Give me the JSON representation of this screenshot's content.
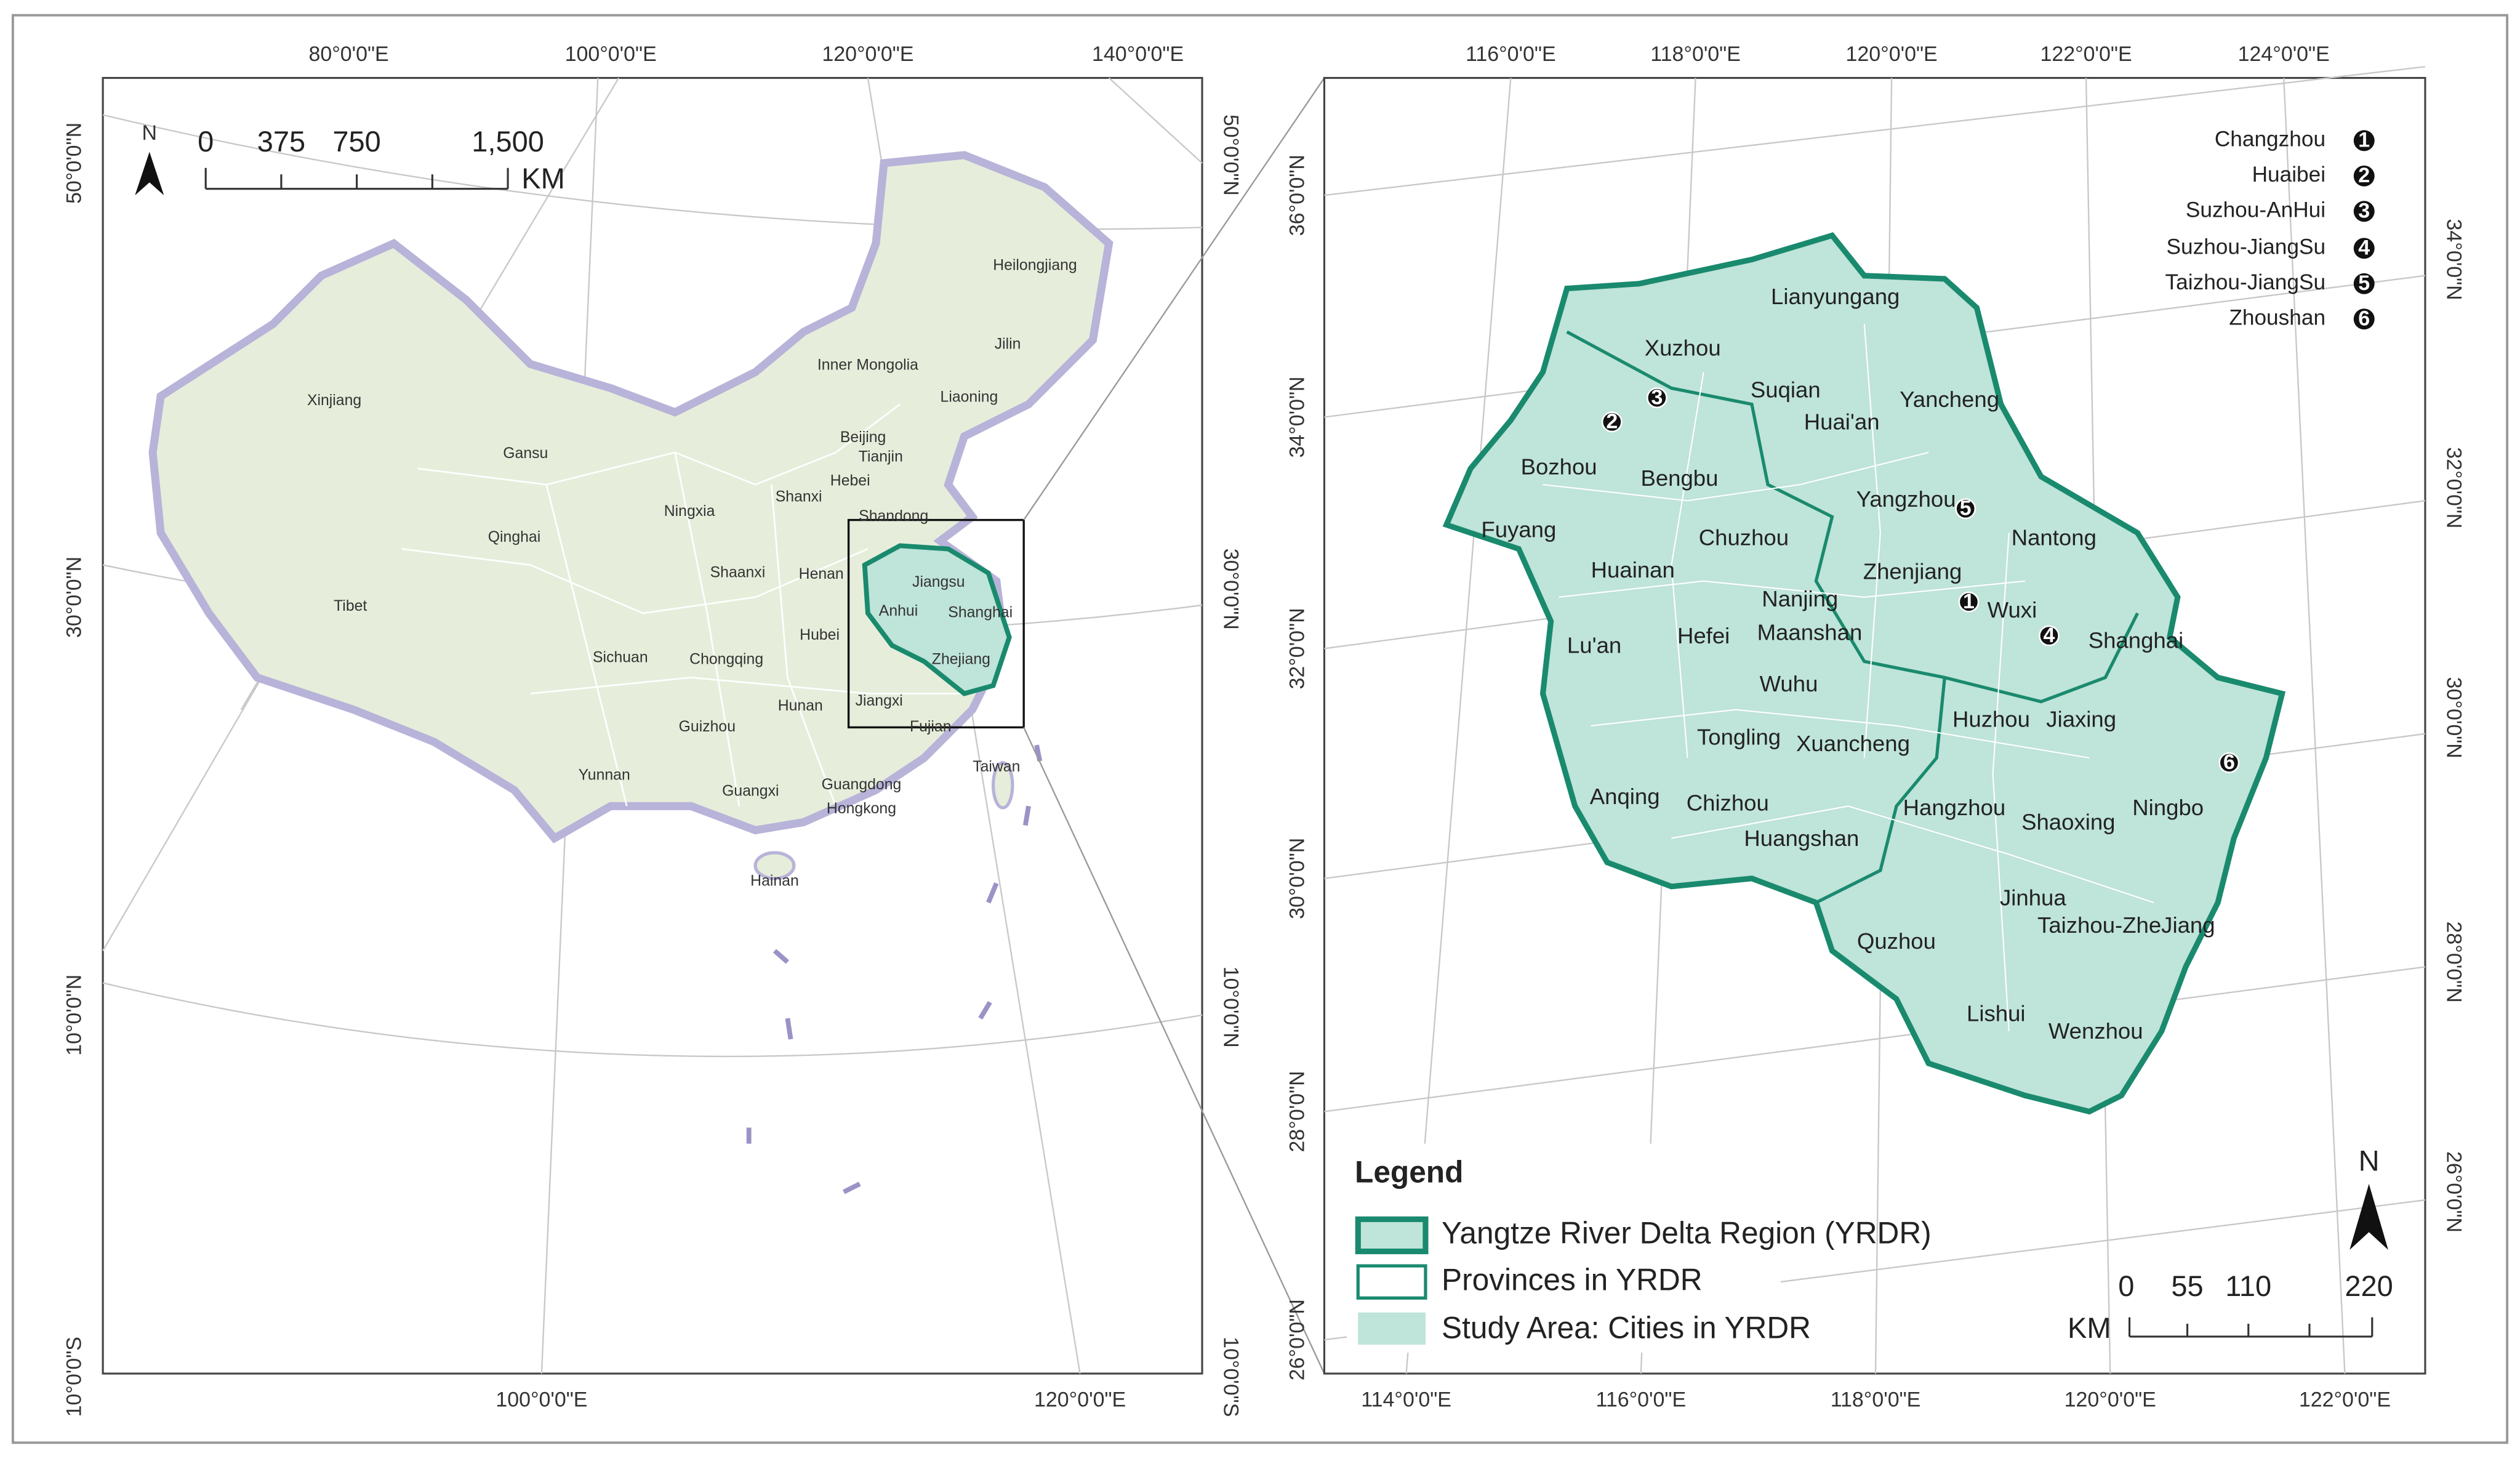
{
  "left_map": {
    "top_labels": [
      "80°0'0\"E",
      "100°0'0\"E",
      "120°0'0\"E",
      "140°0'0\"E"
    ],
    "bottom_labels": [
      "100°0'0\"E",
      "120°0'0\"E"
    ],
    "left_labels": [
      "50°0'0\"N",
      "30°0'0\"N",
      "10°0'0\"N",
      "10°0'0\"S"
    ],
    "right_labels": [
      "50°0'0\"N",
      "30°0'0\"N",
      "10°0'0\"N",
      "10°0'0\"S"
    ],
    "north": "N",
    "scale_labels": [
      "0",
      "375",
      "750",
      "1,500"
    ],
    "scale_unit": "KM",
    "provinces": [
      "Heilongjiang",
      "Jilin",
      "Inner Mongolia",
      "Liaoning",
      "Xinjiang",
      "Gansu",
      "Beijing",
      "Tianjin",
      "Hebei",
      "Shanxi",
      "Shandong",
      "Ningxia",
      "Qinghai",
      "Shaanxi",
      "Henan",
      "Jiangsu",
      "Anhui",
      "Shanghai",
      "Tibet",
      "Hubei",
      "Sichuan",
      "Chongqing",
      "Zhejiang",
      "Jiangxi",
      "Hunan",
      "Guizhou",
      "Fujian",
      "Yunnan",
      "Guangxi",
      "Guangdong",
      "Taiwan",
      "Hongkong",
      "Hainan"
    ]
  },
  "right_map": {
    "top_labels": [
      "116°0'0\"E",
      "118°0'0\"E",
      "120°0'0\"E",
      "122°0'0\"E",
      "124°0'0\"E"
    ],
    "bottom_labels": [
      "114°0'0\"E",
      "116°0'0\"E",
      "118°0'0\"E",
      "120°0'0\"E",
      "122°0'0\"E"
    ],
    "left_labels": [
      "36°0'0\"N",
      "34°0'0\"N",
      "32°0'0\"N",
      "30°0'0\"N",
      "28°0'0\"N",
      "26°0'0\"N"
    ],
    "right_labels": [
      "34°0'0\"N",
      "32°0'0\"N",
      "30°0'0\"N",
      "28°0'0\"N",
      "26°0'0\"N"
    ],
    "cities": [
      "Lianyungang",
      "Xuzhou",
      "Suqian",
      "Yancheng",
      "Huai'an",
      "Bozhou",
      "Bengbu",
      "Yangzhou",
      "Fuyang",
      "Chuzhou",
      "Nantong",
      "Huainan",
      "Zhenjiang",
      "Nanjing",
      "Wuxi",
      "Hefei",
      "Maanshan",
      "Shanghai",
      "Lu'an",
      "Wuhu",
      "Huzhou",
      "Jiaxing",
      "Tongling",
      "Xuancheng",
      "Anqing",
      "Chizhou",
      "Hangzhou",
      "Ningbo",
      "Shaoxing",
      "Huangshan",
      "Jinhua",
      "Taizhou-ZheJiang",
      "Quzhou",
      "Lishui",
      "Wenzhou"
    ],
    "numbered": [
      {
        "number": "1",
        "name": "Changzhou"
      },
      {
        "number": "2",
        "name": "Huaibei"
      },
      {
        "number": "3",
        "name": "Suzhou-AnHui"
      },
      {
        "number": "4",
        "name": "Suzhou-JiangSu"
      },
      {
        "number": "5",
        "name": "Taizhou-JiangSu"
      },
      {
        "number": "6",
        "name": "Zhoushan"
      }
    ],
    "legend": {
      "title": "Legend",
      "items": [
        "Yangtze River Delta Region (YRDR)",
        "Provinces in YRDR",
        "Study Area: Cities in YRDR"
      ]
    },
    "north": "N",
    "scale_labels": [
      "0",
      "55",
      "110",
      "220"
    ],
    "scale_unit": "KM"
  }
}
